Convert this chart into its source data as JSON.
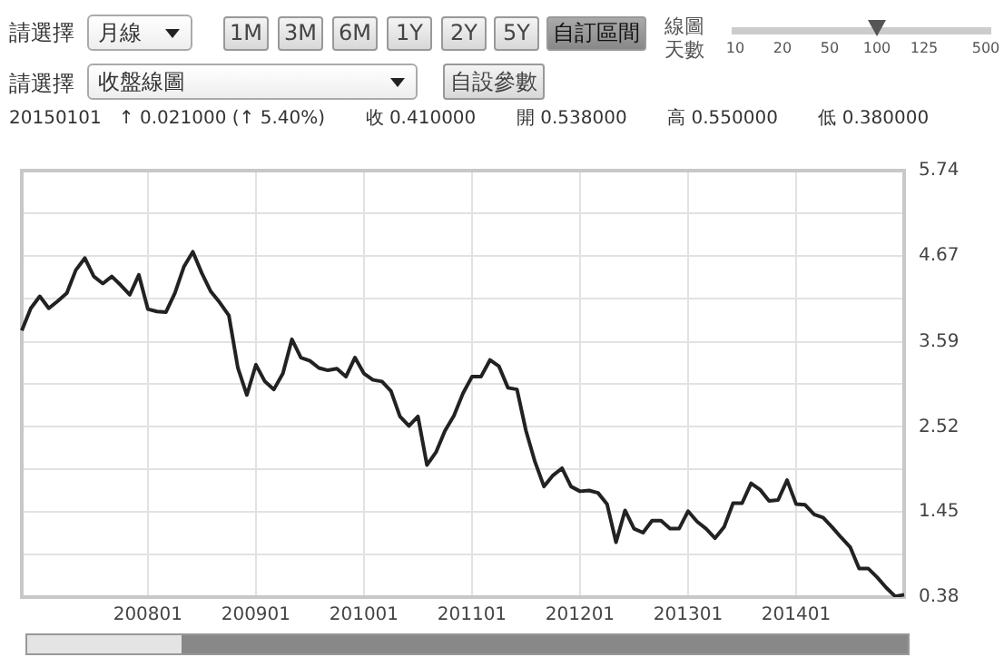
{
  "chart_data": {
    "type": "line",
    "subtitle": "20150101   ↑ 0.021000 (↑ 5.40%)       收 0.410000       開 0.538000       高 0.550000       低 0.380000",
    "annotations": [
      "請選擇",
      "月線",
      "1M",
      "3M",
      "6M",
      "1Y",
      "2Y",
      "5Y",
      "自訂區間",
      "線圖天數",
      "請選擇",
      "收盤線圖",
      "自設參數",
      "10",
      "20",
      "50",
      "100",
      "125",
      "500"
    ],
    "categories": [
      null,
      null,
      null,
      null,
      null,
      null,
      null,
      null,
      null,
      null,
      null,
      null,
      null,
      null,
      "200801",
      null,
      null,
      null,
      null,
      null,
      null,
      null,
      null,
      null,
      null,
      null,
      "200901",
      null,
      null,
      null,
      null,
      null,
      null,
      null,
      null,
      null,
      null,
      null,
      "201001",
      null,
      null,
      null,
      null,
      null,
      null,
      null,
      null,
      null,
      null,
      null,
      "201101",
      null,
      null,
      null,
      null,
      null,
      null,
      null,
      null,
      null,
      null,
      null,
      "201201",
      null,
      null,
      null,
      null,
      null,
      null,
      null,
      null,
      null,
      null,
      null,
      "201301",
      null,
      null,
      null,
      null,
      null,
      null,
      null,
      null,
      null,
      null,
      null,
      "201401",
      null,
      null,
      null,
      null,
      null,
      null,
      null,
      null,
      null,
      null,
      null,
      null
    ],
    "series": [
      {
        "color": "#222222",
        "values": [
          3.73,
          4.01,
          4.16,
          4.01,
          4.1,
          4.2,
          4.49,
          4.64,
          4.41,
          4.32,
          4.41,
          4.3,
          4.18,
          4.43,
          4.0,
          3.97,
          3.96,
          4.2,
          4.53,
          4.72,
          4.45,
          4.22,
          4.08,
          3.92,
          3.26,
          2.92,
          3.3,
          3.09,
          2.99,
          3.19,
          3.62,
          3.39,
          3.35,
          3.26,
          3.23,
          3.25,
          3.15,
          3.39,
          3.19,
          3.11,
          3.09,
          2.97,
          2.65,
          2.53,
          2.65,
          2.04,
          2.2,
          2.47,
          2.66,
          2.94,
          3.15,
          3.15,
          3.36,
          3.28,
          3.01,
          2.99,
          2.47,
          2.08,
          1.77,
          1.91,
          2.0,
          1.77,
          1.71,
          1.72,
          1.69,
          1.55,
          1.07,
          1.47,
          1.24,
          1.19,
          1.34,
          1.34,
          1.24,
          1.24,
          1.46,
          1.33,
          1.24,
          1.12,
          1.26,
          1.56,
          1.56,
          1.81,
          1.73,
          1.59,
          1.6,
          1.85,
          1.55,
          1.54,
          1.42,
          1.38,
          1.26,
          1.13,
          1.01,
          0.74,
          0.74,
          0.63,
          0.5,
          0.39,
          0.41
        ]
      }
    ],
    "ylim": [
      0.38,
      5.74
    ],
    "yticks": [
      0.38,
      {
        "value": 0.916,
        "label": null
      },
      1.45,
      {
        "value": 1.988,
        "label": null
      },
      2.52,
      {
        "value": 3.06,
        "label": null
      },
      3.59,
      {
        "value": 4.132,
        "label": null
      },
      4.67,
      {
        "value": 5.204,
        "label": null
      },
      5.74
    ],
    "grid": true,
    "legend": false,
    "marker": "none",
    "line_style": "solid"
  }
}
